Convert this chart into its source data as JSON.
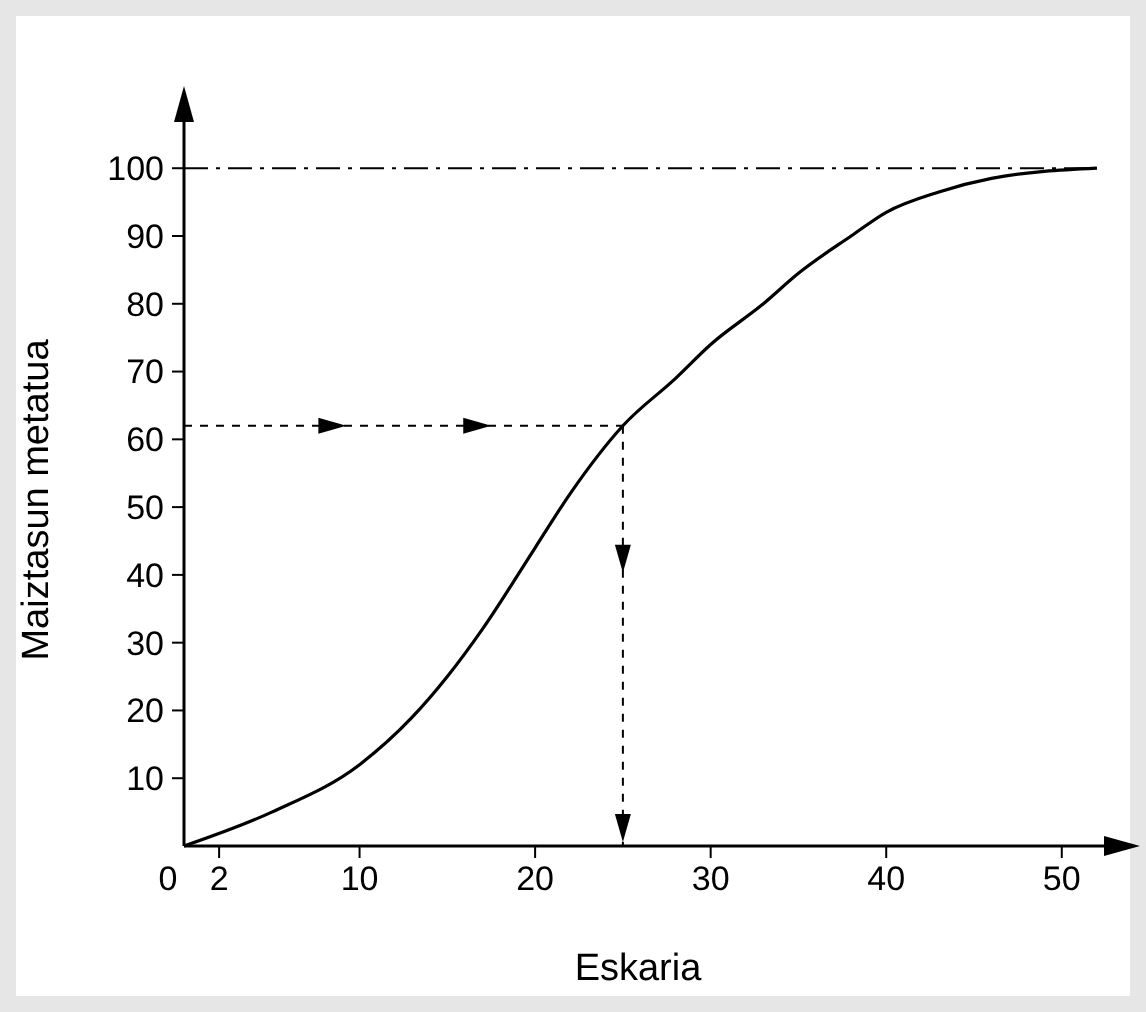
{
  "chart_data": {
    "type": "line",
    "xlabel": "Eskaria",
    "ylabel": "Maiztasun metatua",
    "x": [
      0,
      5,
      10,
      13,
      15,
      17,
      20,
      22,
      25,
      28,
      30,
      33,
      35,
      38,
      40,
      43,
      46,
      52
    ],
    "series": [
      {
        "color": "#000000",
        "values": [
          0,
          5,
          12,
          19,
          25,
          32,
          44,
          52,
          62,
          69,
          74,
          80,
          84.5,
          90,
          93.5,
          96.5,
          98.5,
          100
        ]
      }
    ],
    "xlim": [
      0,
      54
    ],
    "ylim": [
      0,
      108
    ],
    "xticks": [
      0,
      2,
      10,
      20,
      30,
      40,
      50
    ],
    "yticks": [
      10,
      20,
      30,
      40,
      50,
      60,
      70,
      80,
      90,
      100
    ],
    "ref_lines": [
      {
        "axis": "y",
        "value": 100,
        "line_style": "dashdot"
      },
      {
        "axis": "y",
        "value": 62,
        "line_style": "dashed"
      },
      {
        "axis": "x",
        "value": 25,
        "line_style": "dashed"
      }
    ],
    "grid": false,
    "marker": "none",
    "line_style": "solid"
  }
}
